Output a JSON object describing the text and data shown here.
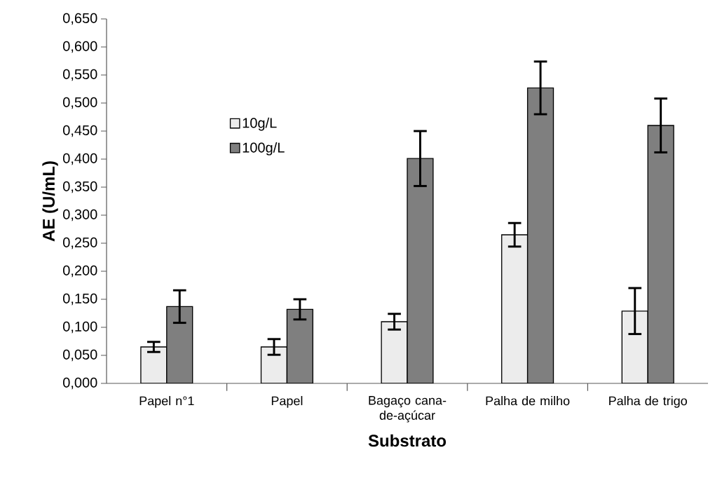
{
  "chart_data": {
    "type": "bar",
    "xlabel": "Substrato",
    "ylabel": "AE (U/mL)",
    "categories": [
      "Papel n°1",
      "Papel",
      "Bagaço cana-de-açúcar",
      "Palha de milho",
      "Palha de trigo"
    ],
    "series": [
      {
        "name": "10g/L",
        "color": "#ececec",
        "values": [
          0.065,
          0.065,
          0.11,
          0.265,
          0.129
        ],
        "errors": [
          0.009,
          0.014,
          0.014,
          0.021,
          0.041
        ]
      },
      {
        "name": "100g/L",
        "color": "#7f7f7f",
        "values": [
          0.137,
          0.132,
          0.401,
          0.527,
          0.46
        ],
        "errors": [
          0.029,
          0.018,
          0.049,
          0.047,
          0.048
        ]
      }
    ],
    "ylim": [
      0,
      0.65
    ],
    "yticks": [
      {
        "value": 0,
        "label": "0,000"
      },
      {
        "value": 0.05,
        "label": "0,050"
      },
      {
        "value": 0.1,
        "label": "0,100"
      },
      {
        "value": 0.15,
        "label": "0,150"
      },
      {
        "value": 0.2,
        "label": "0,200"
      },
      {
        "value": 0.25,
        "label": "0,250"
      },
      {
        "value": 0.3,
        "label": "0,300"
      },
      {
        "value": 0.35,
        "label": "0,350"
      },
      {
        "value": 0.4,
        "label": "0,400"
      },
      {
        "value": 0.45,
        "label": "0,450"
      },
      {
        "value": 0.5,
        "label": "0,500"
      },
      {
        "value": 0.55,
        "label": "0,550"
      },
      {
        "value": 0.6,
        "label": "0,600"
      },
      {
        "value": 0.65,
        "label": "0,650"
      }
    ],
    "legend": "top left",
    "grid": false
  }
}
